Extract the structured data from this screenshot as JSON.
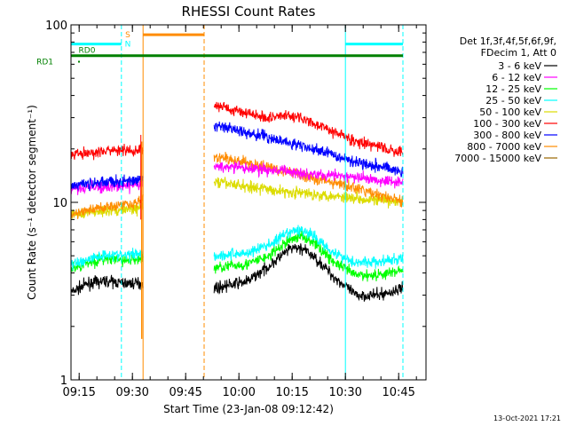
{
  "chart_data": {
    "type": "line",
    "title": "RHESSI Count Rates",
    "xlabel": "Start Time (23-Jan-08 09:12:42)",
    "ylabel": "Count Rate (s⁻¹ detector segment⁻¹)",
    "yscale": "log",
    "ylim": [
      1,
      100
    ],
    "xlim_min": [
      0,
      100
    ],
    "ytick_labels": [
      "1",
      "10",
      "100"
    ],
    "xtick_labels": [
      "09:15",
      "09:30",
      "09:45",
      "10:00",
      "10:15",
      "10:30",
      "10:45"
    ],
    "xtick_minutes": [
      2.3,
      17.3,
      32.3,
      47.3,
      62.3,
      77.3,
      92.3
    ],
    "gap_minutes": [
      20.3,
      40.3
    ],
    "legend_header": [
      "Det 1f,3f,4f,5f,6f,9f,",
      "FDecim 1, Att 0"
    ],
    "series": [
      {
        "name": "3 - 6 keV",
        "color": "#000000",
        "x": [
          0,
          5,
          10,
          15,
          19,
          41,
          50,
          56,
          62,
          65,
          68,
          74,
          80,
          86,
          90,
          93.5
        ],
        "values": [
          3.1,
          3.5,
          3.6,
          3.5,
          3.5,
          3.3,
          3.6,
          4.4,
          5.5,
          5.5,
          5.0,
          3.8,
          3.0,
          3.0,
          3.1,
          3.3
        ]
      },
      {
        "name": "6 - 12 keV",
        "color": "#ff00ff",
        "x": [
          0,
          10,
          19,
          41,
          60,
          93.5
        ],
        "values": [
          12,
          12.2,
          12.5,
          16,
          15,
          13
        ]
      },
      {
        "name": "12 - 25 keV",
        "color": "#00ff00",
        "x": [
          0,
          5,
          10,
          15,
          19,
          41,
          50,
          56,
          62,
          65,
          68,
          74,
          80,
          86,
          90,
          93.5
        ],
        "values": [
          4.2,
          4.6,
          4.8,
          4.7,
          4.8,
          4.3,
          4.5,
          5.0,
          6.2,
          6.5,
          6.0,
          4.6,
          3.9,
          3.9,
          4.0,
          4.2
        ]
      },
      {
        "name": "25 - 50 keV",
        "color": "#00ffff",
        "x": [
          0,
          5,
          10,
          15,
          19,
          41,
          50,
          56,
          62,
          65,
          68,
          74,
          80,
          86,
          90,
          93.5
        ],
        "values": [
          4.4,
          4.8,
          5.1,
          5.0,
          5.2,
          5.0,
          5.2,
          5.8,
          6.8,
          7.0,
          6.5,
          5.2,
          4.6,
          4.6,
          4.7,
          4.8
        ]
      },
      {
        "name": "50 - 100 keV",
        "color": "#dcdc00",
        "x": [
          0,
          10,
          19,
          41,
          60,
          93.5
        ],
        "values": [
          8.5,
          9.0,
          9.2,
          13,
          11.5,
          10
        ]
      },
      {
        "name": "100 - 300 keV",
        "color": "#ff0000",
        "x": [
          0,
          10,
          19,
          41,
          55,
          62,
          68,
          80,
          93.5
        ],
        "values": [
          18.5,
          19.5,
          19.5,
          35,
          30,
          31,
          28,
          22,
          19
        ]
      },
      {
        "name": "300 - 800 keV",
        "color": "#0000ff",
        "x": [
          0,
          10,
          19,
          41,
          60,
          80,
          93.5
        ],
        "values": [
          12.5,
          13,
          13.2,
          27,
          22,
          17,
          15
        ]
      },
      {
        "name": "800 - 7000 keV",
        "color": "#ff8c00",
        "x": [
          0,
          10,
          19,
          41,
          60,
          80,
          93.5
        ],
        "values": [
          8.5,
          9.5,
          10,
          18,
          15,
          12,
          10
        ]
      },
      {
        "name": "7000 - 15000 keV",
        "color": "#996600",
        "x": [],
        "values": []
      }
    ],
    "annotations": {
      "vertical_lines": [
        {
          "x": 0,
          "color": "#00ffff",
          "style": "solid"
        },
        {
          "x": 14.2,
          "color": "#00ffff",
          "style": "dashed"
        },
        {
          "x": 20.3,
          "color": "#ff8c00",
          "style": "solid"
        },
        {
          "x": 37.5,
          "color": "#ff8c00",
          "style": "dashed"
        },
        {
          "x": 77.3,
          "color": "#00ffff",
          "style": "solid"
        },
        {
          "x": 93.5,
          "color": "#00ffff",
          "style": "dashed"
        }
      ],
      "flag_bars": [
        {
          "label": "N",
          "color": "#00ffff",
          "x": [
            0,
            14.2
          ],
          "y": 78,
          "label_x": 16
        },
        {
          "label": "S",
          "color": "#ff8c00",
          "x": [
            20.3,
            37.5
          ],
          "y": 88,
          "label_x": 16
        },
        {
          "label": "N",
          "color": "#00ffff",
          "x": [
            77.3,
            93.5
          ],
          "y": 78,
          "label_x": null
        },
        {
          "label": "RD0",
          "color": "#008000",
          "x": [
            0,
            93.5
          ],
          "y": 67,
          "label_x": 4.5,
          "label_y": 72
        },
        {
          "label": "RD1",
          "color": "#008000",
          "x": [],
          "y": 62,
          "label_x": -5,
          "label_y": 62
        }
      ],
      "spike": {
        "color": "#ff8c00",
        "x": 20.3,
        "values": [
          1.7,
          22
        ]
      }
    },
    "footer_date": "13-Oct-2021 17:21"
  }
}
